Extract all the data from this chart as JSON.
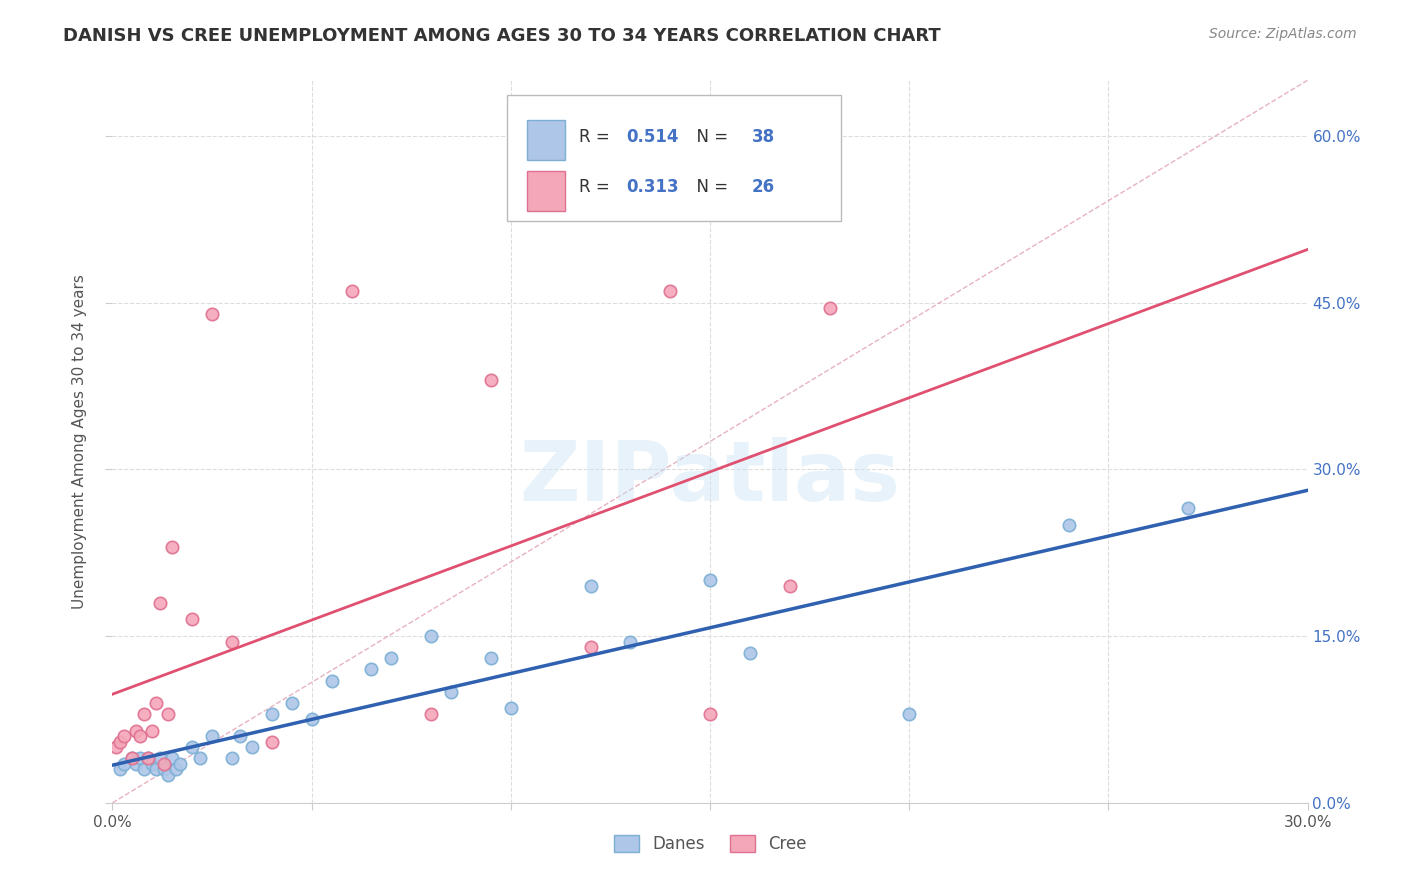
{
  "title": "DANISH VS CREE UNEMPLOYMENT AMONG AGES 30 TO 34 YEARS CORRELATION CHART",
  "source": "Source: ZipAtlas.com",
  "ylabel": "Unemployment Among Ages 30 to 34 years",
  "xlim": [
    0.0,
    0.3
  ],
  "ylim": [
    0.0,
    0.65
  ],
  "xticks": [
    0.0,
    0.05,
    0.1,
    0.15,
    0.2,
    0.25,
    0.3
  ],
  "yticks": [
    0.0,
    0.15,
    0.3,
    0.45,
    0.6
  ],
  "right_ytick_labels": [
    "0.0%",
    "15.0%",
    "30.0%",
    "45.0%",
    "60.0%"
  ],
  "danes_color": "#aec6e8",
  "cree_color": "#f4a7b9",
  "danes_marker_edge": "#7bafd4",
  "cree_marker_edge": "#e07090",
  "danes_R": 0.514,
  "danes_N": 38,
  "cree_R": 0.313,
  "cree_N": 26,
  "danes_line_color": "#3060b0",
  "cree_line_color": "#e05070",
  "diag_line_color": "#e0a0b0",
  "danes_scatter_x": [
    0.002,
    0.003,
    0.005,
    0.006,
    0.007,
    0.008,
    0.009,
    0.01,
    0.011,
    0.012,
    0.013,
    0.014,
    0.015,
    0.016,
    0.017,
    0.02,
    0.022,
    0.025,
    0.03,
    0.032,
    0.035,
    0.04,
    0.045,
    0.05,
    0.055,
    0.065,
    0.07,
    0.08,
    0.085,
    0.095,
    0.1,
    0.12,
    0.13,
    0.15,
    0.16,
    0.2,
    0.24,
    0.27
  ],
  "danes_scatter_y": [
    0.03,
    0.035,
    0.04,
    0.035,
    0.04,
    0.03,
    0.04,
    0.035,
    0.03,
    0.04,
    0.03,
    0.025,
    0.04,
    0.03,
    0.035,
    0.05,
    0.04,
    0.06,
    0.04,
    0.06,
    0.05,
    0.08,
    0.09,
    0.075,
    0.11,
    0.12,
    0.13,
    0.15,
    0.1,
    0.13,
    0.085,
    0.195,
    0.145,
    0.2,
    0.135,
    0.08,
    0.25,
    0.265
  ],
  "cree_scatter_x": [
    0.001,
    0.002,
    0.003,
    0.005,
    0.006,
    0.007,
    0.008,
    0.009,
    0.01,
    0.011,
    0.012,
    0.013,
    0.014,
    0.015,
    0.02,
    0.025,
    0.03,
    0.04,
    0.06,
    0.08,
    0.095,
    0.12,
    0.14,
    0.15,
    0.17,
    0.18
  ],
  "cree_scatter_y": [
    0.05,
    0.055,
    0.06,
    0.04,
    0.065,
    0.06,
    0.08,
    0.04,
    0.065,
    0.09,
    0.18,
    0.035,
    0.08,
    0.23,
    0.165,
    0.44,
    0.145,
    0.055,
    0.46,
    0.08,
    0.38,
    0.14,
    0.46,
    0.08,
    0.195,
    0.445
  ],
  "watermark_text": "ZIPatlas",
  "background_color": "#ffffff",
  "grid_color": "#dddddd",
  "value_color": "#4472c4"
}
